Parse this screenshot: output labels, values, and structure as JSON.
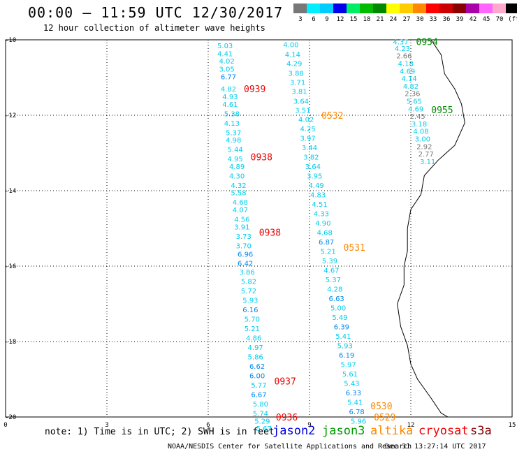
{
  "header": {
    "title": "00:00 – 11:59 UTC 12/30/2017",
    "subtitle": "12 hour collection of altimeter wave heights"
  },
  "color_scale": {
    "unit": "(ft)",
    "bins": [
      {
        "label": "3",
        "color": "#777777"
      },
      {
        "label": "6",
        "color": "#00eeff"
      },
      {
        "label": "9",
        "color": "#00ccff"
      },
      {
        "label": "12",
        "color": "#0000ee"
      },
      {
        "label": "15",
        "color": "#00ee66"
      },
      {
        "label": "18",
        "color": "#00bb00"
      },
      {
        "label": "21",
        "color": "#008800"
      },
      {
        "label": "24",
        "color": "#ffff00"
      },
      {
        "label": "27",
        "color": "#ffcc00"
      },
      {
        "label": "30",
        "color": "#ff8800"
      },
      {
        "label": "33",
        "color": "#ff0000"
      },
      {
        "label": "36",
        "color": "#cc0000"
      },
      {
        "label": "39",
        "color": "#880000"
      },
      {
        "label": "42",
        "color": "#aa00aa"
      },
      {
        "label": "45",
        "color": "#ff66ff"
      },
      {
        "label": "70",
        "color": "#ffaacc"
      },
      {
        "label": "",
        "color": "#000000"
      }
    ]
  },
  "axes": {
    "x_ticks": [
      "0",
      "3",
      "6",
      "9",
      "12",
      "15"
    ],
    "y_ticks": [
      "-10",
      "-12",
      "-14",
      "-16",
      "-18",
      "-20"
    ]
  },
  "tracks": [
    {
      "satellite": "cryosat",
      "passes": [
        {
          "time": "0939",
          "lat": -11.3
        },
        {
          "time": "0938",
          "lat": -13.1
        },
        {
          "time": "0938",
          "lat": -15.1
        },
        {
          "time": "0937",
          "lat": -19.05
        },
        {
          "time": "0936",
          "lat": -20.0
        }
      ],
      "points": [
        {
          "lon": 6.5,
          "lat": -10.15,
          "swh": "5.03"
        },
        {
          "lon": 6.5,
          "lat": -10.36,
          "swh": "4.41"
        },
        {
          "lon": 6.55,
          "lat": -10.56,
          "swh": "4.02"
        },
        {
          "lon": 6.55,
          "lat": -10.77,
          "swh": "3.05"
        },
        {
          "lon": 6.6,
          "lat": -10.97,
          "swh": "6.77"
        },
        {
          "lon": 6.6,
          "lat": -11.3,
          "swh": "4.82"
        },
        {
          "lon": 6.65,
          "lat": -11.5,
          "swh": "4.93"
        },
        {
          "lon": 6.65,
          "lat": -11.7,
          "swh": "4.61"
        },
        {
          "lon": 6.7,
          "lat": -11.95,
          "swh": "5.38"
        },
        {
          "lon": 6.7,
          "lat": -12.2,
          "swh": "4.13"
        },
        {
          "lon": 6.75,
          "lat": -12.45,
          "swh": "5.37"
        },
        {
          "lon": 6.75,
          "lat": -12.65,
          "swh": "4.98"
        },
        {
          "lon": 6.8,
          "lat": -12.9,
          "swh": "5.44"
        },
        {
          "lon": 6.8,
          "lat": -13.15,
          "swh": "4.95"
        },
        {
          "lon": 6.85,
          "lat": -13.35,
          "swh": "4.89"
        },
        {
          "lon": 6.85,
          "lat": -13.6,
          "swh": "4.30"
        },
        {
          "lon": 6.9,
          "lat": -13.85,
          "swh": "4.32"
        },
        {
          "lon": 6.9,
          "lat": -14.05,
          "swh": "5.58"
        },
        {
          "lon": 6.95,
          "lat": -14.3,
          "swh": "4.68"
        },
        {
          "lon": 6.95,
          "lat": -14.5,
          "swh": "4.07"
        },
        {
          "lon": 7.0,
          "lat": -14.75,
          "swh": "4.56"
        },
        {
          "lon": 7.0,
          "lat": -14.95,
          "swh": "3.91"
        },
        {
          "lon": 7.05,
          "lat": -15.2,
          "swh": "3.73"
        },
        {
          "lon": 7.05,
          "lat": -15.45,
          "swh": "3.70"
        },
        {
          "lon": 7.1,
          "lat": -15.68,
          "swh": "6.96"
        },
        {
          "lon": 7.1,
          "lat": -15.92,
          "swh": "6.42"
        },
        {
          "lon": 7.15,
          "lat": -16.15,
          "swh": "3.86"
        },
        {
          "lon": 7.2,
          "lat": -16.4,
          "swh": "5.82"
        },
        {
          "lon": 7.2,
          "lat": -16.65,
          "swh": "5.72"
        },
        {
          "lon": 7.25,
          "lat": -16.9,
          "swh": "5.93"
        },
        {
          "lon": 7.25,
          "lat": -17.15,
          "swh": "6.16"
        },
        {
          "lon": 7.3,
          "lat": -17.4,
          "swh": "5.70"
        },
        {
          "lon": 7.3,
          "lat": -17.65,
          "swh": "5.21"
        },
        {
          "lon": 7.35,
          "lat": -17.9,
          "swh": "4.86"
        },
        {
          "lon": 7.4,
          "lat": -18.15,
          "swh": "4.97"
        },
        {
          "lon": 7.4,
          "lat": -18.4,
          "swh": "5.86"
        },
        {
          "lon": 7.45,
          "lat": -18.65,
          "swh": "6.62"
        },
        {
          "lon": 7.45,
          "lat": -18.9,
          "swh": "6.00"
        },
        {
          "lon": 7.5,
          "lat": -19.15,
          "swh": "5.77"
        },
        {
          "lon": 7.5,
          "lat": -19.4,
          "swh": "6.67"
        },
        {
          "lon": 7.55,
          "lat": -19.65,
          "swh": "5.80"
        },
        {
          "lon": 7.55,
          "lat": -19.9,
          "swh": "5.74"
        },
        {
          "lon": 7.6,
          "lat": -20.1,
          "swh": "5.29"
        },
        {
          "lon": 7.65,
          "lat": -20.3,
          "swh": "5.67"
        }
      ]
    },
    {
      "satellite": "altika",
      "passes": [
        {
          "time": "0532",
          "lat": -12.0
        },
        {
          "time": "0531",
          "lat": -15.5
        },
        {
          "time": "0530",
          "lat": -19.7
        },
        {
          "time": "0529",
          "lat": -20.0
        }
      ],
      "points": [
        {
          "lon": 8.45,
          "lat": -10.12,
          "swh": "4.00"
        },
        {
          "lon": 8.5,
          "lat": -10.38,
          "swh": "4.14"
        },
        {
          "lon": 8.55,
          "lat": -10.62,
          "swh": "4.29"
        },
        {
          "lon": 8.6,
          "lat": -10.88,
          "swh": "3.88"
        },
        {
          "lon": 8.65,
          "lat": -11.12,
          "swh": "3.71"
        },
        {
          "lon": 8.7,
          "lat": -11.36,
          "swh": "3.81"
        },
        {
          "lon": 8.75,
          "lat": -11.62,
          "swh": "3.64"
        },
        {
          "lon": 8.8,
          "lat": -11.86,
          "swh": "3.51"
        },
        {
          "lon": 8.9,
          "lat": -12.1,
          "swh": "4.02"
        },
        {
          "lon": 8.95,
          "lat": -12.35,
          "swh": "4.25"
        },
        {
          "lon": 8.95,
          "lat": -12.6,
          "swh": "3.97"
        },
        {
          "lon": 9.0,
          "lat": -12.85,
          "swh": "3.44"
        },
        {
          "lon": 9.05,
          "lat": -13.1,
          "swh": "3.82"
        },
        {
          "lon": 9.1,
          "lat": -13.35,
          "swh": "3.64"
        },
        {
          "lon": 9.15,
          "lat": -13.6,
          "swh": "3.95"
        },
        {
          "lon": 9.2,
          "lat": -13.85,
          "swh": "4.49"
        },
        {
          "lon": 9.25,
          "lat": -14.1,
          "swh": "4.83"
        },
        {
          "lon": 9.3,
          "lat": -14.35,
          "swh": "4.51"
        },
        {
          "lon": 9.35,
          "lat": -14.6,
          "swh": "4.33"
        },
        {
          "lon": 9.4,
          "lat": -14.85,
          "swh": "4.90"
        },
        {
          "lon": 9.45,
          "lat": -15.1,
          "swh": "4.68"
        },
        {
          "lon": 9.5,
          "lat": -15.35,
          "swh": "6.87"
        },
        {
          "lon": 9.55,
          "lat": -15.6,
          "swh": "5.21"
        },
        {
          "lon": 9.6,
          "lat": -15.85,
          "swh": "5.39"
        },
        {
          "lon": 9.65,
          "lat": -16.1,
          "swh": "4.67"
        },
        {
          "lon": 9.7,
          "lat": -16.35,
          "swh": "5.37"
        },
        {
          "lon": 9.75,
          "lat": -16.6,
          "swh": "4.28"
        },
        {
          "lon": 9.8,
          "lat": -16.85,
          "swh": "6.63"
        },
        {
          "lon": 9.85,
          "lat": -17.1,
          "swh": "5.00"
        },
        {
          "lon": 9.9,
          "lat": -17.35,
          "swh": "5.49"
        },
        {
          "lon": 9.95,
          "lat": -17.6,
          "swh": "6.39"
        },
        {
          "lon": 10.0,
          "lat": -17.85,
          "swh": "5.41"
        },
        {
          "lon": 10.05,
          "lat": -18.1,
          "swh": "5.93"
        },
        {
          "lon": 10.1,
          "lat": -18.35,
          "swh": "6.19"
        },
        {
          "lon": 10.15,
          "lat": -18.6,
          "swh": "5.97"
        },
        {
          "lon": 10.2,
          "lat": -18.85,
          "swh": "5.61"
        },
        {
          "lon": 10.25,
          "lat": -19.1,
          "swh": "5.43"
        },
        {
          "lon": 10.3,
          "lat": -19.35,
          "swh": "6.33"
        },
        {
          "lon": 10.35,
          "lat": -19.6,
          "swh": "5.41"
        },
        {
          "lon": 10.4,
          "lat": -19.85,
          "swh": "6.78"
        },
        {
          "lon": 10.45,
          "lat": -20.1,
          "swh": "5.96"
        }
      ]
    },
    {
      "satellite": "jason3",
      "passes": [
        {
          "time": "0954",
          "lat": -10.05
        },
        {
          "time": "0955",
          "lat": -11.85
        }
      ],
      "points": [
        {
          "lon": 11.7,
          "lat": -10.05,
          "swh": "4.37"
        },
        {
          "lon": 11.75,
          "lat": -10.22,
          "swh": "4.23"
        },
        {
          "lon": 11.8,
          "lat": -10.42,
          "swh": "2.66"
        },
        {
          "lon": 11.85,
          "lat": -10.62,
          "swh": "4.18"
        },
        {
          "lon": 11.9,
          "lat": -10.82,
          "swh": "4.69"
        },
        {
          "lon": 11.95,
          "lat": -11.02,
          "swh": "4.14"
        },
        {
          "lon": 12.0,
          "lat": -11.22,
          "swh": "4.82"
        },
        {
          "lon": 12.05,
          "lat": -11.42,
          "swh": "2.36"
        },
        {
          "lon": 12.1,
          "lat": -11.62,
          "swh": "5.65"
        },
        {
          "lon": 12.15,
          "lat": -11.82,
          "swh": "4.69"
        },
        {
          "lon": 12.2,
          "lat": -12.02,
          "swh": "2.45"
        },
        {
          "lon": 12.25,
          "lat": -12.22,
          "swh": "3.18"
        },
        {
          "lon": 12.3,
          "lat": -12.42,
          "swh": "4.08"
        },
        {
          "lon": 12.35,
          "lat": -12.62,
          "swh": "3.00"
        },
        {
          "lon": 12.4,
          "lat": -12.82,
          "swh": "2.92"
        },
        {
          "lon": 12.45,
          "lat": -13.02,
          "swh": "2.77"
        },
        {
          "lon": 12.5,
          "lat": -13.22,
          "swh": "3.11"
        }
      ]
    }
  ],
  "footer": {
    "note": "note: 1) Time is in UTC; 2) SWH is in feet",
    "satellites": [
      {
        "name": "jason2",
        "color": "#0000dd"
      },
      {
        "name": "jason3",
        "color": "#009900"
      },
      {
        "name": "altika",
        "color": "#ff8800"
      },
      {
        "name": "cryosat",
        "color": "#ee0000"
      },
      {
        "name": "s3a",
        "color": "#880000"
      }
    ],
    "credit": "NOAA/NESDIS Center for Satellite Applications and Research",
    "timestamp": "Dec 31 13:27:14 UTC 2017"
  }
}
